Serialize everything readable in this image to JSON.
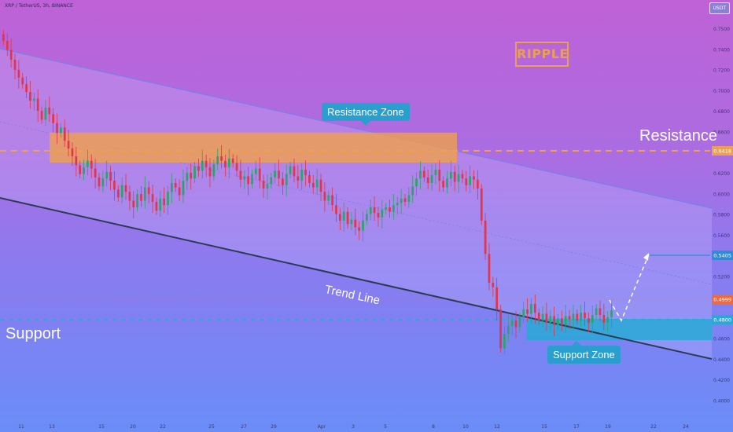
{
  "header": {
    "symbol_text": "XRP / TetherUS, 3h, BINANCE",
    "currency": "USDT"
  },
  "logo_text": "RIPPLE",
  "labels": {
    "resistance": "Resistance",
    "support": "Support",
    "trend_line": "Trend Line",
    "resistance_zone": "Resistance Zone",
    "support_zone": "Support Zone"
  },
  "colors": {
    "bull": "#2ea26a",
    "bear": "#e0354a",
    "resistance": "#f0a04b",
    "support": "#29a9d6",
    "trend": "#2b3a55",
    "channel": "#7b7fe6"
  },
  "chart_data": {
    "type": "candlestick",
    "ylim": [
      0.4,
      0.76
    ],
    "y_ticks": [
      "0.7500",
      "0.7400",
      "0.7200",
      "0.7000",
      "0.6800",
      "0.6600",
      "0.6400",
      "0.6200",
      "0.6000",
      "0.5800",
      "0.5600",
      "0.5400",
      "0.5200",
      "0.5000",
      "0.4800",
      "0.4600",
      "0.4400",
      "0.4200",
      "0.4000"
    ],
    "x_ticks": [
      "11",
      "13",
      "15",
      "20",
      "22",
      "25",
      "27",
      "29",
      "Apr",
      "3",
      "5",
      "8",
      "10",
      "12",
      "15",
      "17",
      "19",
      "22",
      "24"
    ],
    "price_labels": [
      {
        "label": "0.6418",
        "value": 0.6418,
        "color": "#f0a04b"
      },
      {
        "label": "0.5405",
        "value": 0.5405,
        "color": "#2f8bd8"
      },
      {
        "label": "0.4999",
        "value": 0.4999,
        "color": "#f06a3c"
      },
      {
        "label": "0.4800",
        "value": 0.48,
        "color": "#29a9d6"
      }
    ],
    "resistance_level": 0.6418,
    "support_level": 0.48,
    "resistance_zone": [
      0.638,
      0.658
    ],
    "support_zone": [
      0.458,
      0.48
    ],
    "close_prices": [
      0.742,
      0.734,
      0.725,
      0.716,
      0.709,
      0.703,
      0.696,
      0.688,
      0.69,
      0.679,
      0.671,
      0.682,
      0.676,
      0.668,
      0.659,
      0.664,
      0.652,
      0.645,
      0.638,
      0.63,
      0.622,
      0.628,
      0.634,
      0.627,
      0.619,
      0.611,
      0.618,
      0.624,
      0.616,
      0.608,
      0.601,
      0.612,
      0.606,
      0.598,
      0.592,
      0.604,
      0.598,
      0.61,
      0.604,
      0.597,
      0.589,
      0.6,
      0.594,
      0.606,
      0.614,
      0.61,
      0.603,
      0.616,
      0.623,
      0.618,
      0.629,
      0.625,
      0.634,
      0.628,
      0.62,
      0.631,
      0.638,
      0.634,
      0.628,
      0.636,
      0.632,
      0.625,
      0.617,
      0.62,
      0.613,
      0.622,
      0.627,
      0.616,
      0.609,
      0.613,
      0.619,
      0.625,
      0.618,
      0.612,
      0.622,
      0.629,
      0.62,
      0.616,
      0.626,
      0.621,
      0.614,
      0.61,
      0.617,
      0.606,
      0.598,
      0.603,
      0.594,
      0.586,
      0.58,
      0.588,
      0.577,
      0.581,
      0.574,
      0.571,
      0.58,
      0.586,
      0.592,
      0.587,
      0.583,
      0.59,
      0.592,
      0.588,
      0.594,
      0.596,
      0.6,
      0.597,
      0.603,
      0.611,
      0.618,
      0.625,
      0.619,
      0.614,
      0.621,
      0.626,
      0.616,
      0.61,
      0.618,
      0.624,
      0.615,
      0.622,
      0.618,
      0.612,
      0.62,
      0.617,
      0.609,
      0.58,
      0.55,
      0.524,
      0.52,
      0.5,
      0.465,
      0.478,
      0.485,
      0.49,
      0.484,
      0.493,
      0.5,
      0.496,
      0.505,
      0.497,
      0.49,
      0.496,
      0.488,
      0.494,
      0.486,
      0.492,
      0.486,
      0.494,
      0.491,
      0.496,
      0.49,
      0.497,
      0.492,
      0.488,
      0.495,
      0.501,
      0.495,
      0.488,
      0.493,
      0.499
    ]
  }
}
